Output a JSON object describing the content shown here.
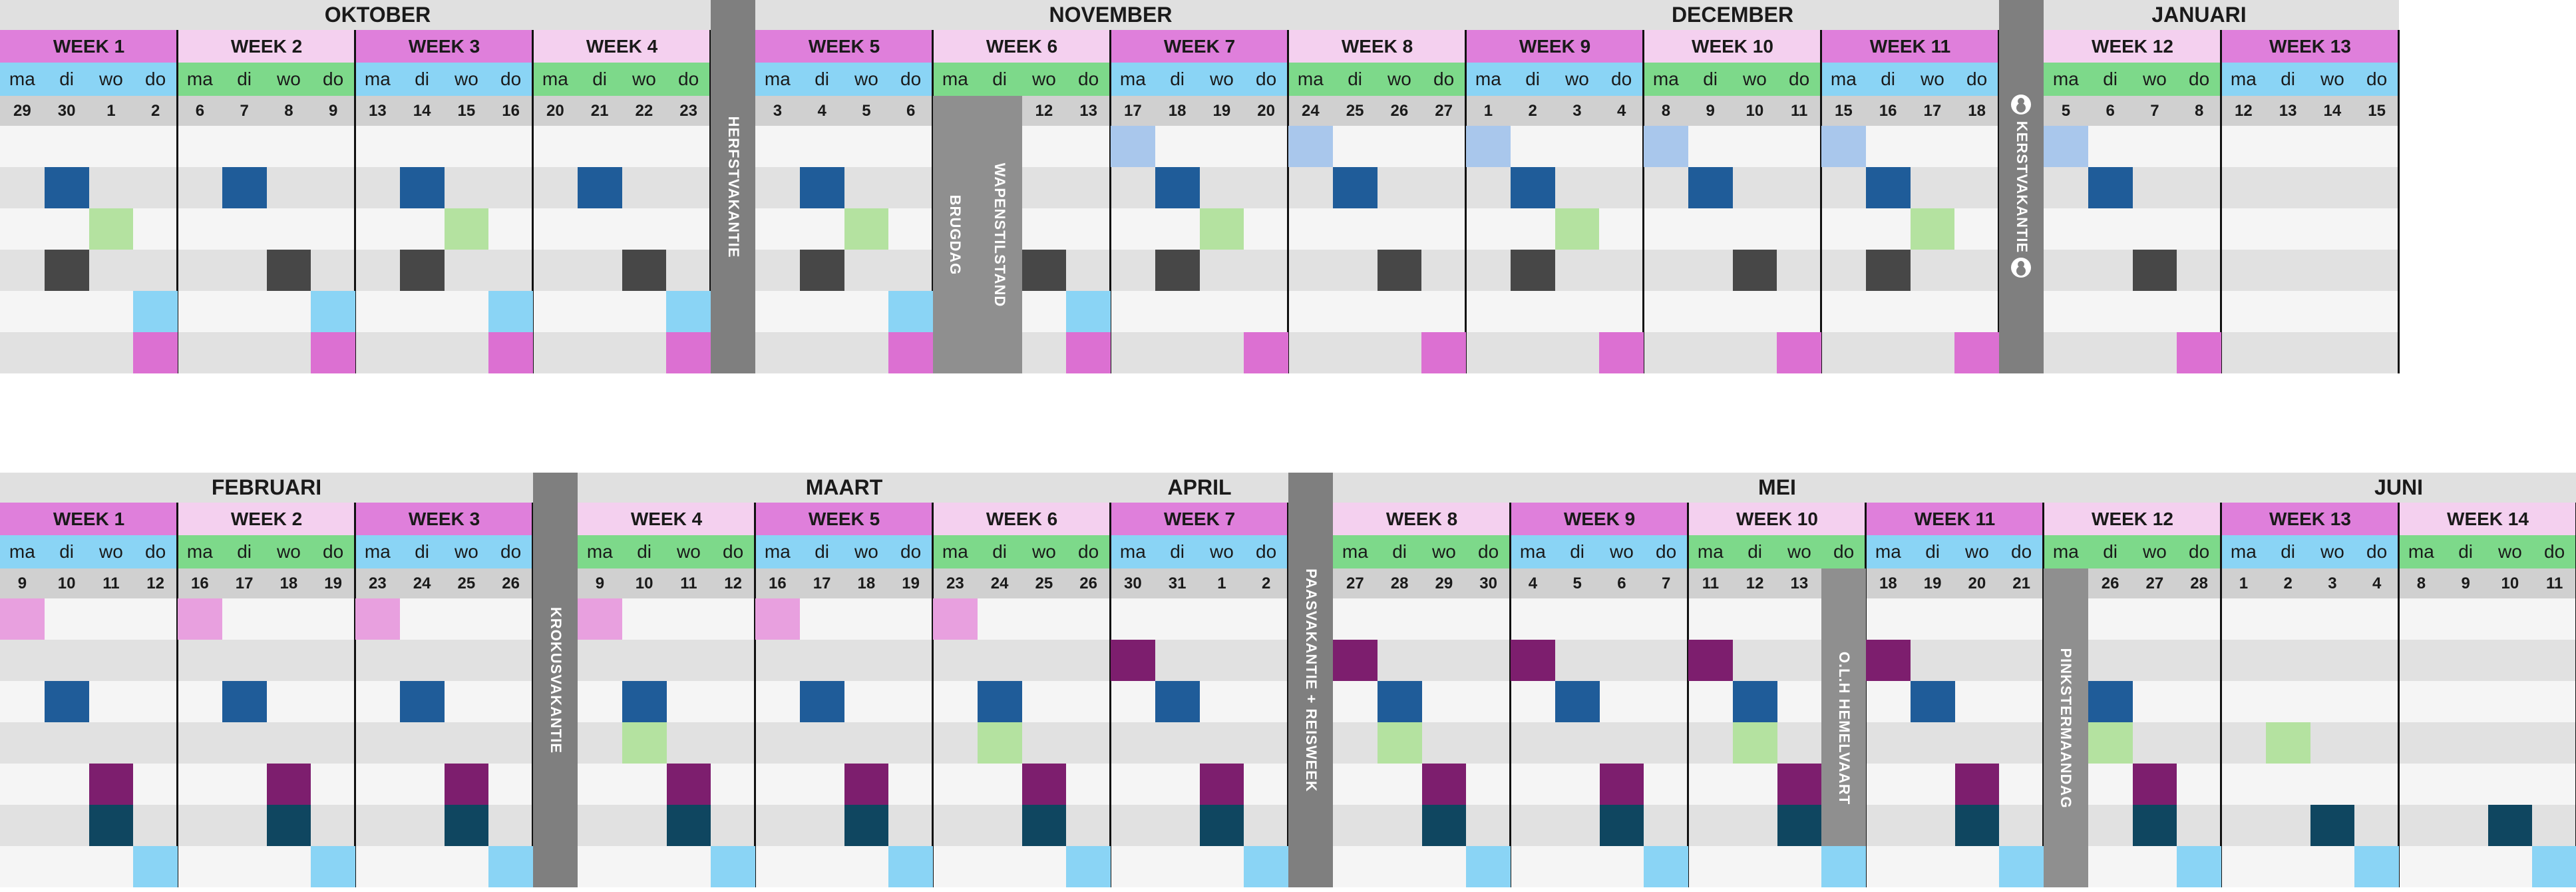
{
  "colors": {
    "mark_blue": "#1f5c99",
    "mark_green": "#b4e2a0",
    "mark_dark": "#474747",
    "mark_sky": "#8ad4f5",
    "mark_magenta": "#dc70d2",
    "mark_lightblue": "#a9c7ec",
    "mark_pink": "#e8a0df",
    "mark_purple": "#7d1e6e",
    "mark_teal": "#0f4660",
    "row_light": "#f5f5f5",
    "row_dark": "#e1e1e1"
  },
  "section1": {
    "months": [
      "OKTOBER",
      "NOVEMBER",
      "DECEMBER",
      "JANUARI"
    ],
    "weeks": [
      {
        "label": "WEEK 1",
        "dates": [
          "29",
          "30",
          "1",
          "2"
        ]
      },
      {
        "label": "WEEK 2",
        "dates": [
          "6",
          "7",
          "8",
          "9"
        ]
      },
      {
        "label": "WEEK 3",
        "dates": [
          "13",
          "14",
          "15",
          "16"
        ]
      },
      {
        "label": "WEEK 4",
        "dates": [
          "20",
          "21",
          "22",
          "23"
        ]
      },
      {
        "label": "WEEK 5",
        "dates": [
          "3",
          "4",
          "5",
          "6"
        ]
      },
      {
        "label": "WEEK 6",
        "dates": [
          "",
          "",
          "12",
          "13"
        ]
      },
      {
        "label": "WEEK 7",
        "dates": [
          "17",
          "18",
          "19",
          "20"
        ]
      },
      {
        "label": "WEEK 8",
        "dates": [
          "24",
          "25",
          "26",
          "27"
        ]
      },
      {
        "label": "WEEK 9",
        "dates": [
          "1",
          "2",
          "3",
          "4"
        ]
      },
      {
        "label": "WEEK 10",
        "dates": [
          "8",
          "9",
          "10",
          "11"
        ]
      },
      {
        "label": "WEEK 11",
        "dates": [
          "15",
          "16",
          "17",
          "18"
        ]
      },
      {
        "label": "WEEK 12",
        "dates": [
          "5",
          "6",
          "7",
          "8"
        ]
      },
      {
        "label": "WEEK 13",
        "dates": [
          "12",
          "13",
          "14",
          "15"
        ]
      }
    ],
    "days": [
      "ma",
      "di",
      "wo",
      "do"
    ],
    "vacations": [
      "HERFSTVAKANTIE",
      "KERSTVAKANTIE"
    ],
    "holidays": [
      "BRUGDAG",
      "WAPENSTILSTAND"
    ],
    "snowman_icon": "snowman-icon"
  },
  "section2": {
    "months": [
      "FEBRUARI",
      "MAART",
      "APRIL",
      "MEI",
      "JUNI"
    ],
    "weeks": [
      {
        "label": "WEEK 1",
        "dates": [
          "9",
          "10",
          "11",
          "12"
        ]
      },
      {
        "label": "WEEK 2",
        "dates": [
          "16",
          "17",
          "18",
          "19"
        ]
      },
      {
        "label": "WEEK 3",
        "dates": [
          "23",
          "24",
          "25",
          "26"
        ]
      },
      {
        "label": "WEEK 4",
        "dates": [
          "9",
          "10",
          "11",
          "12"
        ]
      },
      {
        "label": "WEEK 5",
        "dates": [
          "16",
          "17",
          "18",
          "19"
        ]
      },
      {
        "label": "WEEK 6",
        "dates": [
          "23",
          "24",
          "25",
          "26"
        ]
      },
      {
        "label": "WEEK 7",
        "dates": [
          "30",
          "31",
          "1",
          "2"
        ]
      },
      {
        "label": "WEEK 8",
        "dates": [
          "27",
          "28",
          "29",
          "30"
        ]
      },
      {
        "label": "WEEK 9",
        "dates": [
          "4",
          "5",
          "6",
          "7"
        ]
      },
      {
        "label": "WEEK 10",
        "dates": [
          "11",
          "12",
          "13",
          ""
        ]
      },
      {
        "label": "WEEK 11",
        "dates": [
          "18",
          "19",
          "20",
          "21"
        ]
      },
      {
        "label": "WEEK 12",
        "dates": [
          "",
          "26",
          "27",
          "28"
        ]
      },
      {
        "label": "WEEK 13",
        "dates": [
          "1",
          "2",
          "3",
          "4"
        ]
      },
      {
        "label": "WEEK 14",
        "dates": [
          "8",
          "9",
          "10",
          "11"
        ]
      }
    ],
    "days": [
      "ma",
      "di",
      "wo",
      "do"
    ],
    "vacations": [
      "KROKUSVAKANTIE",
      "PAASVAKANTIE + REISWEEK"
    ],
    "holidays": [
      "O.L.H HEMELVAART",
      "PINKSTERMAANDAG"
    ]
  }
}
